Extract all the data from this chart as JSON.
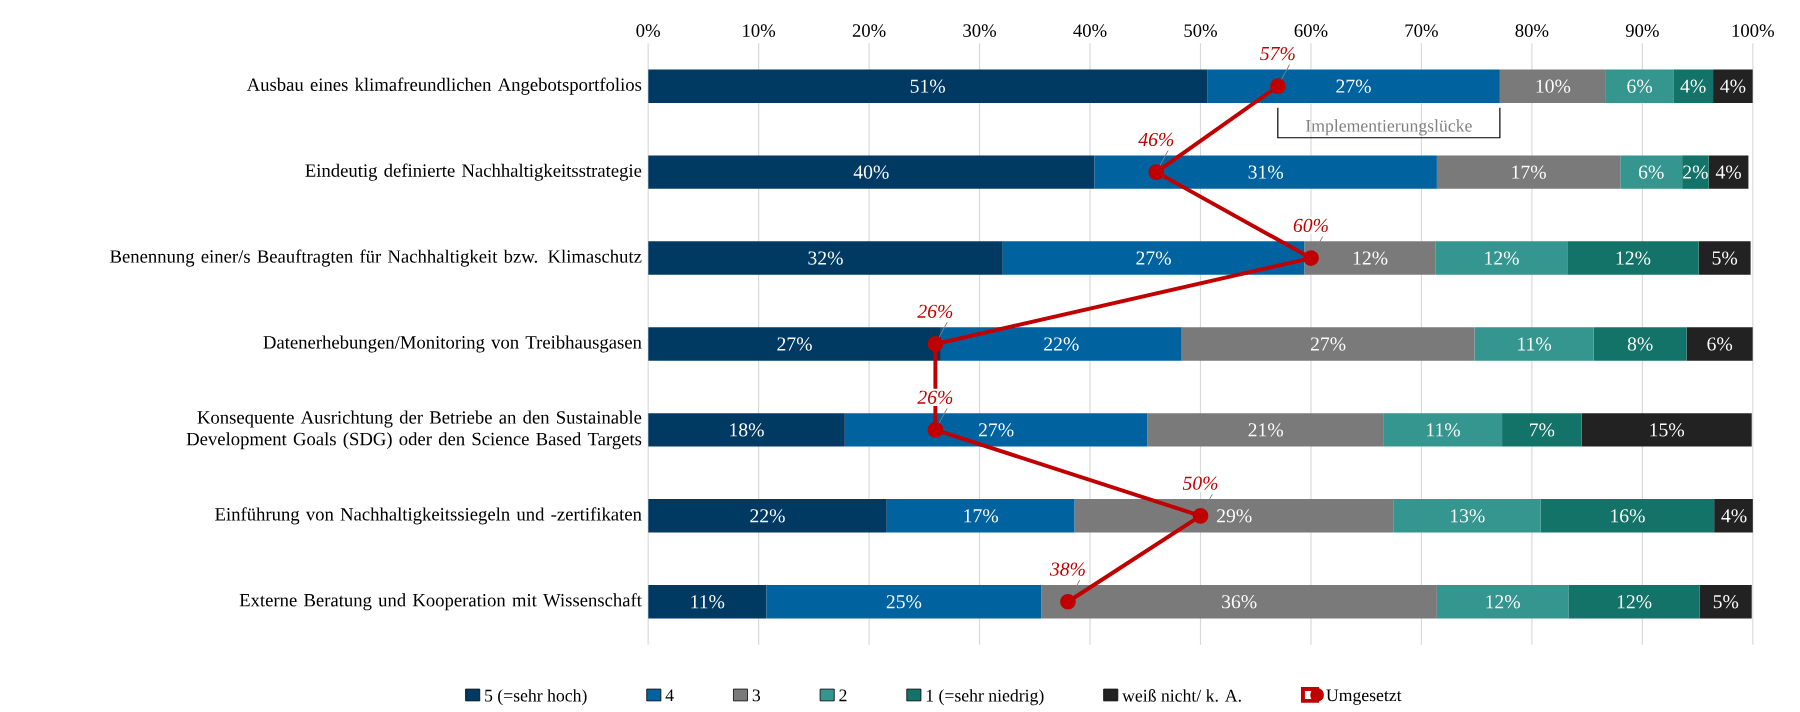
{
  "chart_data": {
    "type": "bar",
    "orientation": "horizontal",
    "stacked": true,
    "categories": [
      "Ausbau eines klimafreundlichen Angebotsportfolios",
      "Eindeutig definierte Nachhaltigkeitsstrategie",
      "Benennung einer/s Beauftragten für Nachhaltigkeit bzw. Klimaschutz",
      "Datenerhebungen/Monitoring von Treibhausgasen",
      "Konsequente Ausrichtung der Betriebe an den Sustainable Development Goals (SDG) oder den Science Based Targets",
      "Einführung von Nachhaltigkeitssiegeln und -zertifikaten",
      "Externe Beratung und Kooperation mit Wissenschaft"
    ],
    "series": [
      {
        "name": "5 (=sehr hoch)",
        "color": "#003a63",
        "values": [
          50.6,
          40.4,
          32.1,
          26.5,
          17.8,
          21.6,
          10.7
        ],
        "value_labels": [
          "51%",
          "40%",
          "32%",
          "27%",
          "18%",
          "22%",
          "11%"
        ]
      },
      {
        "name": "4",
        "color": "#0063a0",
        "values": [
          26.5,
          31.0,
          27.3,
          21.8,
          27.4,
          17.0,
          24.9
        ],
        "value_labels": [
          "27%",
          "31%",
          "27%",
          "22%",
          "27%",
          "17%",
          "25%"
        ]
      },
      {
        "name": "3",
        "color": "#7a7a7a",
        "values": [
          9.6,
          16.6,
          11.9,
          26.5,
          21.4,
          28.9,
          35.8
        ],
        "value_labels": [
          "10%",
          "17%",
          "12%",
          "27%",
          "21%",
          "29%",
          "36%"
        ]
      },
      {
        "name": "2",
        "color": "#35958f",
        "values": [
          6.1,
          5.6,
          11.9,
          10.8,
          10.7,
          13.3,
          11.9
        ],
        "value_labels": [
          "6%",
          "6%",
          "12%",
          "11%",
          "11%",
          "13%",
          "12%"
        ]
      },
      {
        "name": "1 (=sehr niedrig)",
        "color": "#137368",
        "values": [
          3.6,
          2.4,
          11.9,
          8.4,
          7.2,
          15.7,
          11.9
        ],
        "value_labels": [
          "4%",
          "2%",
          "12%",
          "8%",
          "7%",
          "16%",
          "12%"
        ]
      },
      {
        "name": "weiß nicht/ k. A.",
        "color": "#222222",
        "values": [
          3.6,
          3.6,
          4.7,
          6.0,
          15.4,
          3.6,
          4.7
        ],
        "value_labels": [
          "4%",
          "4%",
          "5%",
          "6%",
          "15%",
          "4%",
          "5%"
        ]
      },
      {
        "name": "Umgesetzt",
        "type": "line",
        "marker": "circle",
        "color": "#c00000",
        "values": [
          57,
          46,
          60,
          26,
          26,
          50,
          38
        ],
        "value_labels": [
          "57%",
          "46%",
          "60%",
          "26%",
          "26%",
          "50%",
          "38%"
        ]
      }
    ],
    "xlim": [
      0,
      100
    ],
    "xticks": [
      {
        "value": 0,
        "label": "0%"
      },
      {
        "value": 10,
        "label": "10%"
      },
      {
        "value": 20,
        "label": "20%"
      },
      {
        "value": 30,
        "label": "30%"
      },
      {
        "value": 40,
        "label": "40%"
      },
      {
        "value": 50,
        "label": "50%"
      },
      {
        "value": 60,
        "label": "60%"
      },
      {
        "value": 70,
        "label": "70%"
      },
      {
        "value": 80,
        "label": "80%"
      },
      {
        "value": 90,
        "label": "90%"
      },
      {
        "value": 100,
        "label": "100%"
      }
    ],
    "grid": "x",
    "legend": "bottom",
    "annotations": [
      "Implementierungslücke"
    ]
  }
}
